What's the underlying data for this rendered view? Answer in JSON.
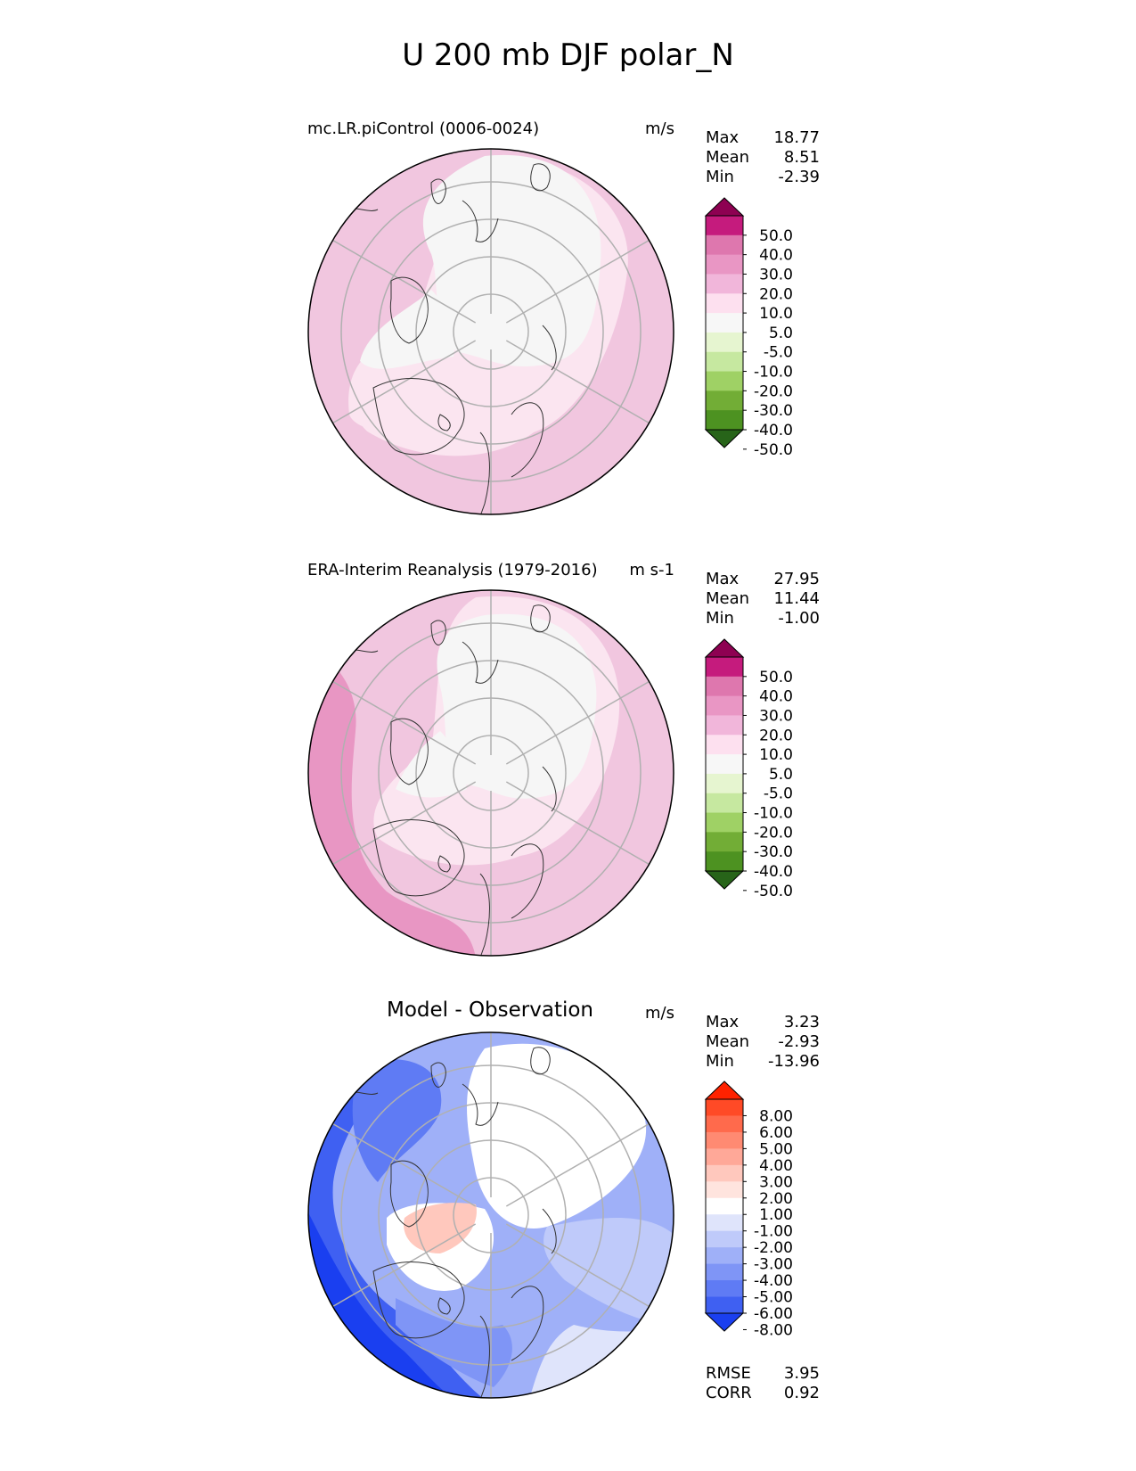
{
  "title": "U 200 mb DJF polar_N",
  "panels": [
    {
      "id": "test",
      "title": "mc.LR.piControl (0006-0024)",
      "units": "m/s",
      "stats": [
        {
          "label": "Max",
          "value": "18.77"
        },
        {
          "label": "Mean",
          "value": "8.51"
        },
        {
          "label": "Min",
          "value": "-2.39"
        }
      ],
      "colorbar": {
        "ticks": [
          "50.0",
          "40.0",
          "30.0",
          "20.0",
          "10.0",
          "5.0",
          "-5.0",
          "-10.0",
          "-20.0",
          "-30.0",
          "-40.0",
          "-50.0"
        ],
        "colors": [
          "#8e0152",
          "#c51b7d",
          "#de77ae",
          "#e996c4",
          "#f1b6da",
          "#fde0ef",
          "#f7f7f7",
          "#e6f5d0",
          "#c6e8a0",
          "#9fd165",
          "#72ad36",
          "#4d9221",
          "#276419"
        ]
      }
    },
    {
      "id": "reference",
      "title": "ERA-Interim Reanalysis (1979-2016)",
      "units": "m s-1",
      "stats": [
        {
          "label": "Max",
          "value": "27.95"
        },
        {
          "label": "Mean",
          "value": "11.44"
        },
        {
          "label": "Min",
          "value": "-1.00"
        }
      ],
      "colorbar": {
        "ticks": [
          "50.0",
          "40.0",
          "30.0",
          "20.0",
          "10.0",
          "5.0",
          "-5.0",
          "-10.0",
          "-20.0",
          "-30.0",
          "-40.0",
          "-50.0"
        ],
        "colors": [
          "#8e0152",
          "#c51b7d",
          "#de77ae",
          "#e996c4",
          "#f1b6da",
          "#fde0ef",
          "#f7f7f7",
          "#e6f5d0",
          "#c6e8a0",
          "#9fd165",
          "#72ad36",
          "#4d9221",
          "#276419"
        ]
      }
    },
    {
      "id": "difference",
      "title": "Model - Observation",
      "units": "m/s",
      "stats": [
        {
          "label": "Max",
          "value": "3.23"
        },
        {
          "label": "Mean",
          "value": "-2.93"
        },
        {
          "label": "Min",
          "value": "-13.96"
        }
      ],
      "extra_stats": [
        {
          "label": "RMSE",
          "value": "3.95"
        },
        {
          "label": "CORR",
          "value": "0.92"
        }
      ],
      "colorbar": {
        "ticks": [
          "8.00",
          "6.00",
          "5.00",
          "4.00",
          "3.00",
          "2.00",
          "1.00",
          "-1.00",
          "-2.00",
          "-3.00",
          "-4.00",
          "-5.00",
          "-6.00",
          "-8.00"
        ],
        "colors": [
          "#ff2200",
          "#ff4a26",
          "#ff6a4c",
          "#ff8a72",
          "#ffa898",
          "#ffc8bd",
          "#ffe4de",
          "#ffffff",
          "#dfe4fb",
          "#bfcafa",
          "#9fb0f8",
          "#7f95f6",
          "#5f7bf4",
          "#3f60f2",
          "#1a3ff0"
        ]
      }
    }
  ],
  "colors": {
    "map_outline": "#000000",
    "grid": "#b0b0b0",
    "coast": "#333333"
  }
}
